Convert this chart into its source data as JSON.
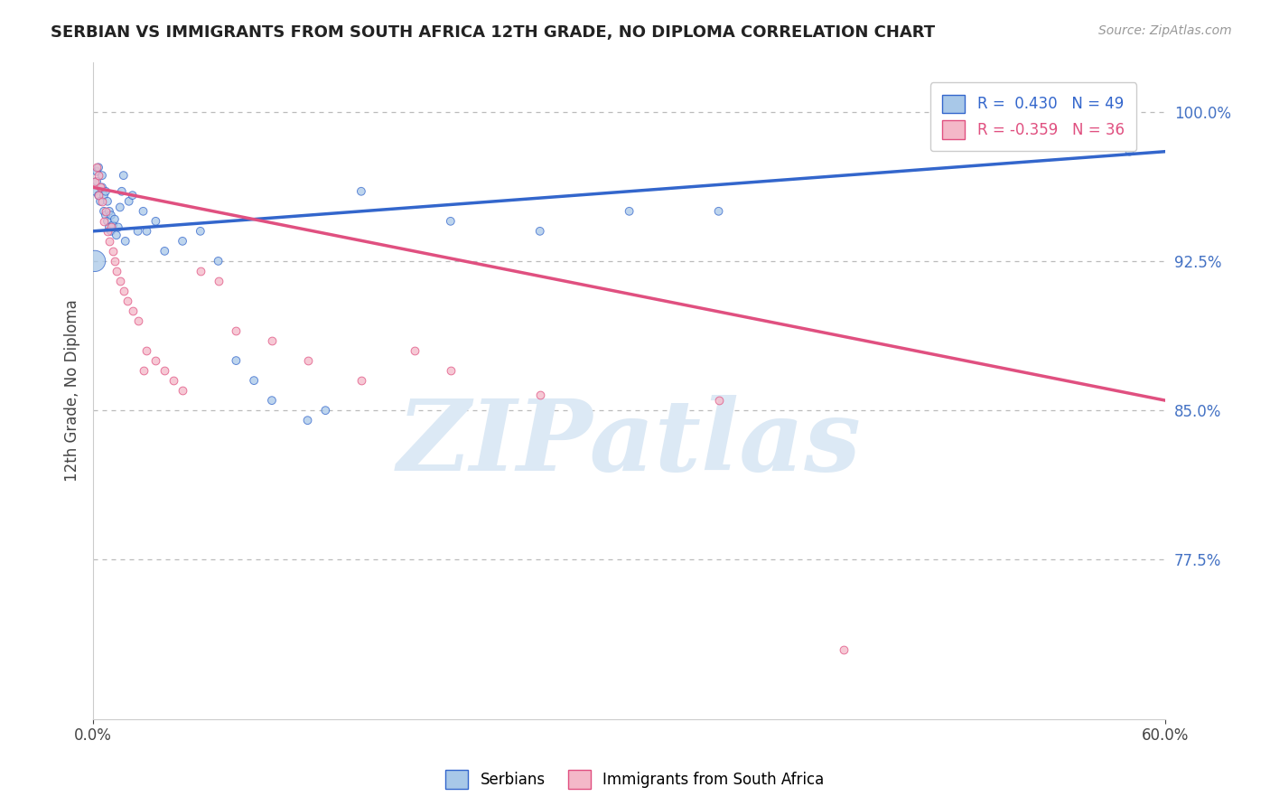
{
  "title": "SERBIAN VS IMMIGRANTS FROM SOUTH AFRICA 12TH GRADE, NO DIPLOMA CORRELATION CHART",
  "source_text": "Source: ZipAtlas.com",
  "ylabel_label": "12th Grade, No Diploma",
  "y_tick_labels": [
    "100.0%",
    "92.5%",
    "85.0%",
    "77.5%"
  ],
  "y_tick_values": [
    1.0,
    0.925,
    0.85,
    0.775
  ],
  "xlim": [
    0.0,
    0.6
  ],
  "ylim": [
    0.695,
    1.025
  ],
  "legend_r1": "R =  0.430   N = 49",
  "legend_r2": "R = -0.359   N = 36",
  "blue_color": "#a8c8e8",
  "pink_color": "#f4b8c8",
  "blue_line_color": "#3366cc",
  "pink_line_color": "#e05080",
  "watermark_text": "ZIPatlas",
  "watermark_color": "#dce9f5",
  "background_color": "#ffffff",
  "blue_scatter_x": [
    0.001,
    0.002,
    0.002,
    0.003,
    0.003,
    0.004,
    0.005,
    0.005,
    0.006,
    0.006,
    0.007,
    0.007,
    0.008,
    0.008,
    0.009,
    0.009,
    0.01,
    0.01,
    0.011,
    0.012,
    0.013,
    0.014,
    0.015,
    0.016,
    0.017,
    0.018,
    0.02,
    0.022,
    0.025,
    0.028,
    0.03,
    0.035,
    0.04,
    0.05,
    0.06,
    0.07,
    0.08,
    0.09,
    0.1,
    0.12,
    0.15,
    0.001,
    0.52,
    0.58,
    0.2,
    0.25,
    0.3,
    0.35,
    0.13
  ],
  "blue_scatter_y": [
    0.96,
    0.97,
    0.965,
    0.958,
    0.972,
    0.955,
    0.962,
    0.968,
    0.95,
    0.958,
    0.948,
    0.96,
    0.945,
    0.955,
    0.942,
    0.95,
    0.94,
    0.948,
    0.943,
    0.946,
    0.938,
    0.942,
    0.952,
    0.96,
    0.968,
    0.935,
    0.955,
    0.958,
    0.94,
    0.95,
    0.94,
    0.945,
    0.93,
    0.935,
    0.94,
    0.925,
    0.875,
    0.865,
    0.855,
    0.845,
    0.96,
    0.925,
    0.985,
    0.98,
    0.945,
    0.94,
    0.95,
    0.95,
    0.85
  ],
  "blue_scatter_sizes": [
    40,
    40,
    40,
    40,
    40,
    40,
    40,
    40,
    40,
    40,
    40,
    40,
    40,
    40,
    40,
    40,
    40,
    40,
    40,
    40,
    40,
    40,
    40,
    40,
    40,
    40,
    40,
    40,
    40,
    40,
    40,
    40,
    40,
    40,
    40,
    40,
    40,
    40,
    40,
    40,
    40,
    280,
    40,
    40,
    40,
    40,
    40,
    40,
    40
  ],
  "pink_scatter_x": [
    0.001,
    0.002,
    0.003,
    0.003,
    0.004,
    0.005,
    0.006,
    0.007,
    0.008,
    0.009,
    0.01,
    0.011,
    0.012,
    0.013,
    0.015,
    0.017,
    0.019,
    0.022,
    0.025,
    0.028,
    0.03,
    0.035,
    0.04,
    0.045,
    0.05,
    0.06,
    0.07,
    0.08,
    0.1,
    0.12,
    0.15,
    0.18,
    0.2,
    0.25,
    0.35,
    0.42
  ],
  "pink_scatter_y": [
    0.965,
    0.972,
    0.958,
    0.968,
    0.962,
    0.955,
    0.945,
    0.95,
    0.94,
    0.935,
    0.942,
    0.93,
    0.925,
    0.92,
    0.915,
    0.91,
    0.905,
    0.9,
    0.895,
    0.87,
    0.88,
    0.875,
    0.87,
    0.865,
    0.86,
    0.92,
    0.915,
    0.89,
    0.885,
    0.875,
    0.865,
    0.88,
    0.87,
    0.858,
    0.855,
    0.73
  ],
  "blue_line_x": [
    0.0,
    0.6
  ],
  "blue_line_y": [
    0.94,
    0.98
  ],
  "pink_line_x": [
    0.0,
    0.6
  ],
  "pink_line_y": [
    0.962,
    0.855
  ]
}
